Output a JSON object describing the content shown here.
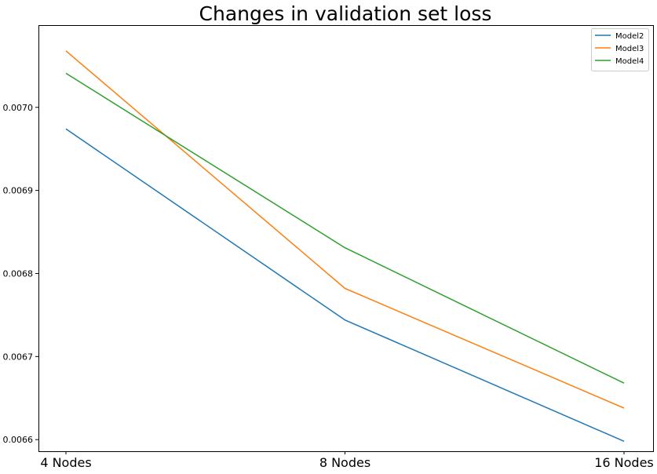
{
  "chart_data": {
    "type": "line",
    "title": "Changes in validation set loss",
    "xlabel": "",
    "ylabel": "",
    "categories": [
      "4 Nodes",
      "8 Nodes",
      "16 Nodes"
    ],
    "yticks": [
      0.0066,
      0.0067,
      0.0068,
      0.0069,
      0.007
    ],
    "ytick_labels": [
      "0.0066",
      "0.0067",
      "0.0068",
      "0.0069",
      "0.0070"
    ],
    "ylim": [
      0.006586,
      0.007099
    ],
    "grid": false,
    "legend_position": "top-right",
    "series": [
      {
        "name": "Model2",
        "color": "#1f77b4",
        "values": [
          0.006974,
          0.006744,
          0.006598
        ]
      },
      {
        "name": "Model3",
        "color": "#ff7f0e",
        "values": [
          0.007068,
          0.006782,
          0.006638
        ]
      },
      {
        "name": "Model4",
        "color": "#2ca02c",
        "values": [
          0.007041,
          0.006831,
          0.006668
        ]
      }
    ]
  }
}
